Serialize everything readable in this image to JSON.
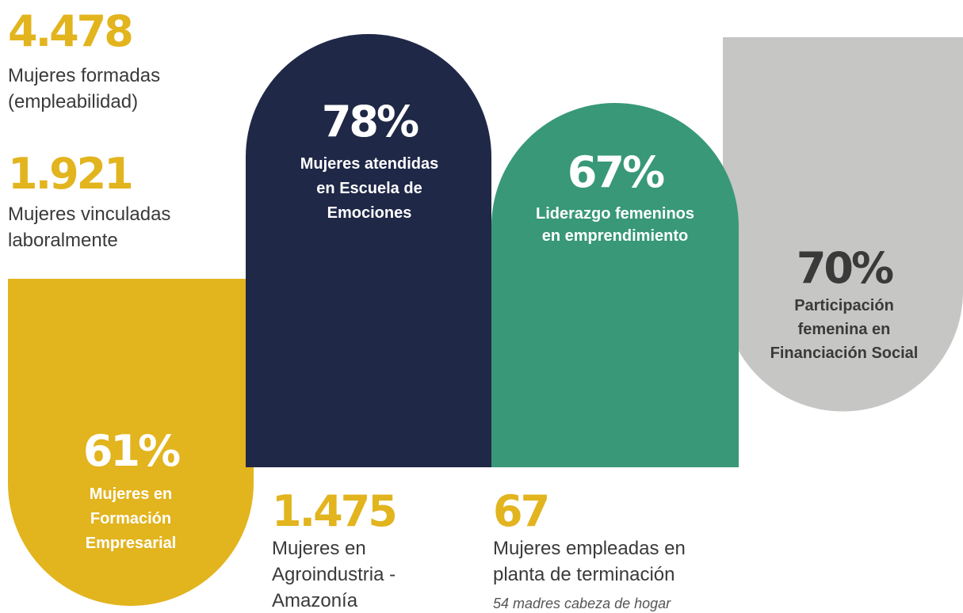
{
  "stats": {
    "formadas": {
      "value": "4.478",
      "label": [
        "Mujeres formadas",
        "(empleabilidad)"
      ]
    },
    "vinculadas": {
      "value": "1.921",
      "label": [
        "Mujeres vinculadas",
        "laboralmente"
      ]
    },
    "escuela": {
      "value": "78%",
      "label": [
        "Mujeres atendidas",
        "en Escuela de",
        "Emociones"
      ]
    },
    "liderazgo": {
      "value": "67%",
      "label": [
        "Liderazgo femeninos",
        "en emprendimiento"
      ]
    },
    "financiacion": {
      "value": "70%",
      "label": [
        "Participación",
        "femenina en",
        "Financiación Social"
      ]
    },
    "empresarial": {
      "value": "61%",
      "label": [
        "Mujeres en",
        "Formación",
        "Empresarial"
      ]
    },
    "agroindustria": {
      "value": "1.475",
      "label": [
        "Mujeres en",
        "Agroindustria -",
        "Amazonía"
      ]
    },
    "planta": {
      "value": "67",
      "label": [
        "Mujeres empleadas en",
        "planta de terminación"
      ],
      "note": "54 madres cabeza de hogar"
    }
  }
}
